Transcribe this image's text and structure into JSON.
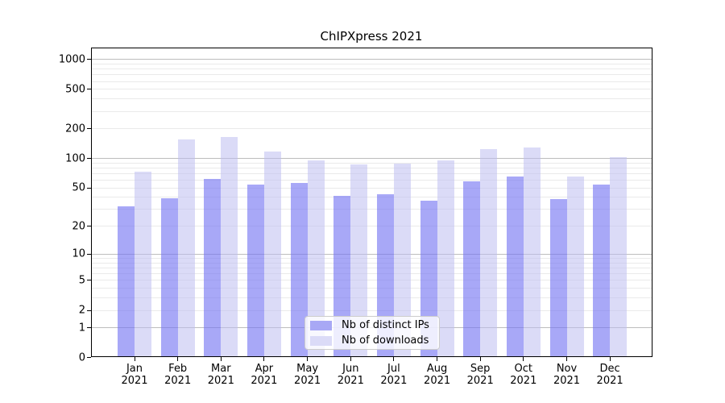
{
  "chart_data": {
    "type": "bar",
    "title": "ChIPXpress 2021",
    "categories": [
      "Jan 2021",
      "Feb 2021",
      "Mar 2021",
      "Apr 2021",
      "May 2021",
      "Jun 2021",
      "Jul 2021",
      "Aug 2021",
      "Sep 2021",
      "Oct 2021",
      "Nov 2021",
      "Dec 2021"
    ],
    "series": [
      {
        "name": "Nb of distinct IPs",
        "swatch_color": "#a8a8f5",
        "fill_color": "rgba(114,114,242,0.62)",
        "values": [
          31,
          38,
          60,
          52,
          54,
          40,
          42,
          36,
          57,
          63,
          37,
          52
        ]
      },
      {
        "name": "Nb of downloads",
        "swatch_color": "#dbdbf7",
        "fill_color": "rgba(190,190,240,0.55)",
        "values": [
          71,
          151,
          159,
          114,
          93,
          84,
          86,
          92,
          121,
          125,
          64,
          100
        ]
      }
    ],
    "yscale": "log1p",
    "yticks": [
      0,
      1,
      2,
      5,
      10,
      20,
      50,
      100,
      200,
      500,
      1000
    ],
    "ytick_labels": [
      "0",
      "1",
      "2",
      "5",
      "10",
      "20",
      "50",
      "100",
      "200",
      "500",
      "1000"
    ],
    "major_grid_values": [
      1,
      10,
      100,
      1000
    ],
    "ylim": [
      0,
      1300
    ],
    "xlabel": "",
    "ylabel": "",
    "grid": "horizontal major+minor",
    "legend_position": "lower center"
  }
}
